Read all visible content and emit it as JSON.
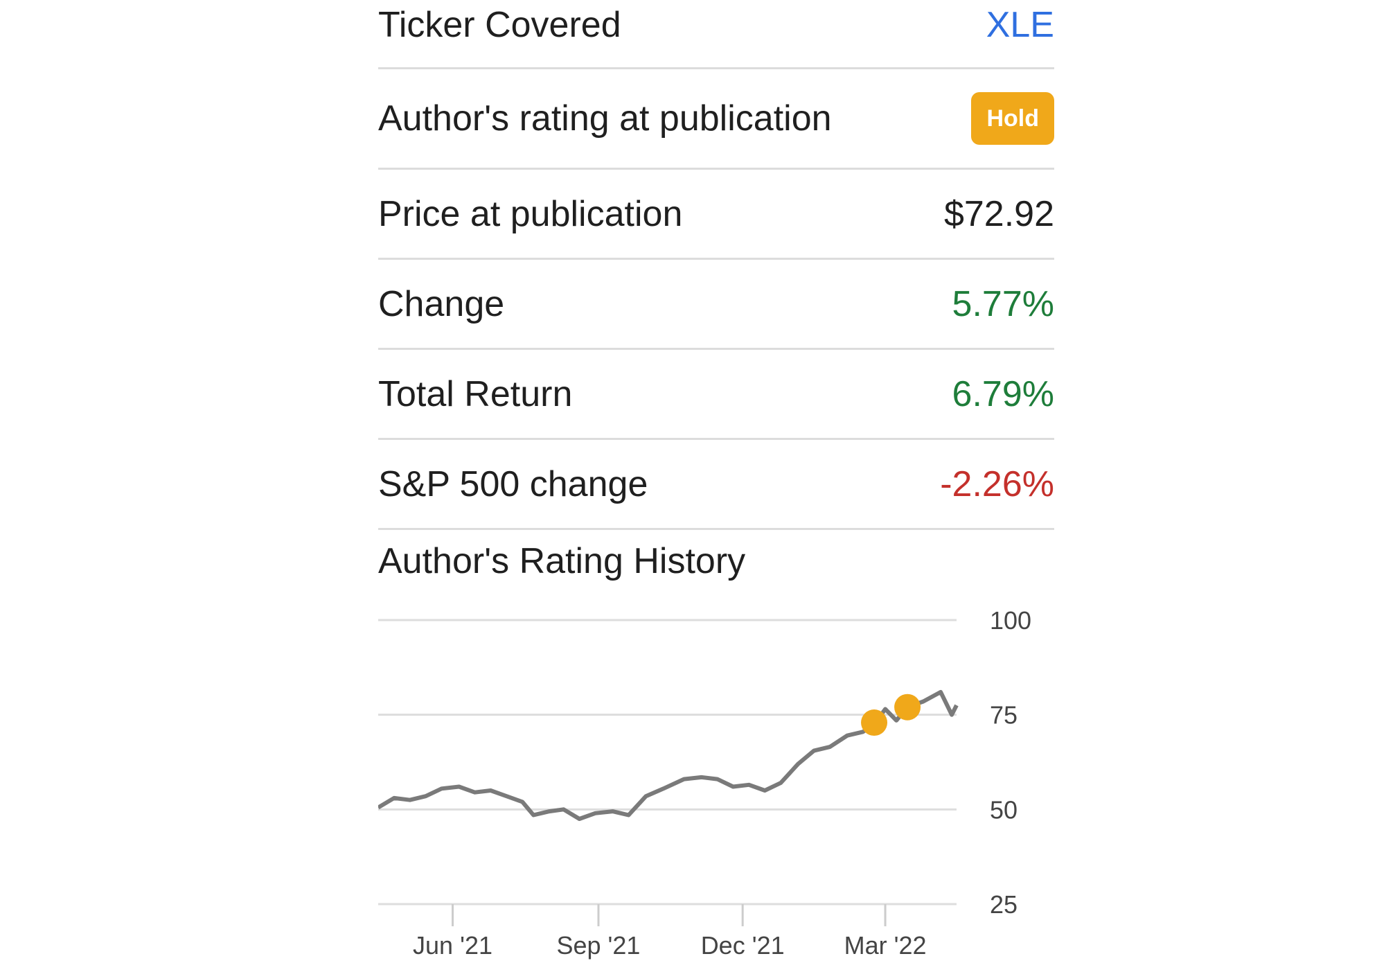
{
  "summary": {
    "ticker_label": "Ticker Covered",
    "ticker_value": "XLE",
    "rating_label": "Author's rating at publication",
    "rating_value": "Hold",
    "price_label": "Price at publication",
    "price_value": "$72.92",
    "change_label": "Change",
    "change_value": "5.77%",
    "total_return_label": "Total Return",
    "total_return_value": "6.79%",
    "sp500_label": "S&P 500 change",
    "sp500_value": "-2.26%"
  },
  "history_title": "Author's Rating History",
  "colors": {
    "accent_link": "#2f6fe0",
    "positive": "#1e7d3a",
    "negative": "#c4302b",
    "hold_badge": "#f0a81a",
    "price_line": "#7a7a7a",
    "rating_marker": "#f0a81a"
  },
  "chart_data": {
    "type": "line",
    "title": "",
    "xlabel": "",
    "ylabel": "",
    "x_tick_labels": [
      "Jun '21",
      "Sep '21",
      "Dec '21",
      "Mar '22"
    ],
    "y_tick_labels": [
      "100",
      "75",
      "50",
      "25"
    ],
    "ylim": [
      25,
      100
    ],
    "xlim": [
      "2021-04-15",
      "2022-04-15"
    ],
    "grid": true,
    "series": [
      {
        "values": [
          {
            "x": "2021-04-15",
            "y": 50.5
          },
          {
            "x": "2021-04-25",
            "y": 53.0
          },
          {
            "x": "2021-05-05",
            "y": 52.5
          },
          {
            "x": "2021-05-15",
            "y": 53.5
          },
          {
            "x": "2021-05-25",
            "y": 55.5
          },
          {
            "x": "2021-06-05",
            "y": 56.0
          },
          {
            "x": "2021-06-15",
            "y": 54.5
          },
          {
            "x": "2021-06-25",
            "y": 55.0
          },
          {
            "x": "2021-07-05",
            "y": 53.5
          },
          {
            "x": "2021-07-15",
            "y": 52.0
          },
          {
            "x": "2021-07-22",
            "y": 48.5
          },
          {
            "x": "2021-08-01",
            "y": 49.5
          },
          {
            "x": "2021-08-10",
            "y": 50.0
          },
          {
            "x": "2021-08-20",
            "y": 47.5
          },
          {
            "x": "2021-08-30",
            "y": 49.0
          },
          {
            "x": "2021-09-10",
            "y": 49.5
          },
          {
            "x": "2021-09-20",
            "y": 48.5
          },
          {
            "x": "2021-10-01",
            "y": 53.5
          },
          {
            "x": "2021-10-12",
            "y": 55.5
          },
          {
            "x": "2021-10-25",
            "y": 58.0
          },
          {
            "x": "2021-11-05",
            "y": 58.5
          },
          {
            "x": "2021-11-15",
            "y": 58.0
          },
          {
            "x": "2021-11-25",
            "y": 56.0
          },
          {
            "x": "2021-12-05",
            "y": 56.5
          },
          {
            "x": "2021-12-15",
            "y": 55.0
          },
          {
            "x": "2021-12-25",
            "y": 57.0
          },
          {
            "x": "2022-01-05",
            "y": 62.0
          },
          {
            "x": "2022-01-15",
            "y": 65.5
          },
          {
            "x": "2022-01-25",
            "y": 66.5
          },
          {
            "x": "2022-02-05",
            "y": 69.5
          },
          {
            "x": "2022-02-15",
            "y": 70.5
          },
          {
            "x": "2022-02-22",
            "y": 72.5
          },
          {
            "x": "2022-03-01",
            "y": 76.5
          },
          {
            "x": "2022-03-08",
            "y": 73.5
          },
          {
            "x": "2022-03-15",
            "y": 77.0
          },
          {
            "x": "2022-03-25",
            "y": 78.5
          },
          {
            "x": "2022-04-05",
            "y": 81.0
          },
          {
            "x": "2022-04-12",
            "y": 75.0
          },
          {
            "x": "2022-04-15",
            "y": 77.5
          }
        ]
      }
    ],
    "rating_markers": [
      {
        "x": "2022-02-22",
        "y": 72.92
      },
      {
        "x": "2022-03-15",
        "y": 77.0
      }
    ]
  }
}
